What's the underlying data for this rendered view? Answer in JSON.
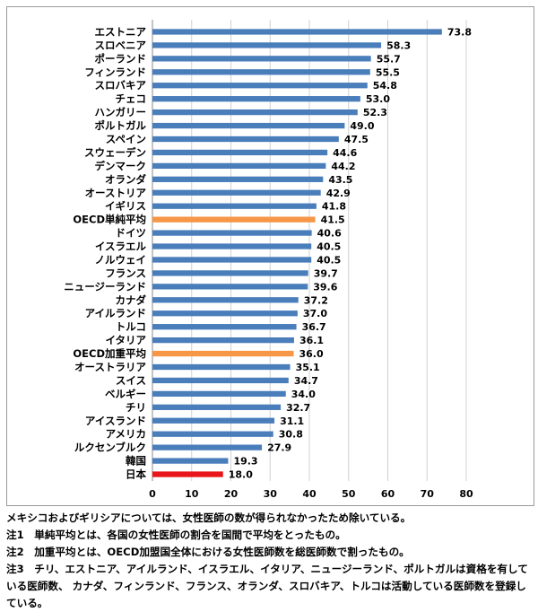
{
  "chart_data": {
    "type": "bar",
    "orientation": "horizontal",
    "categories": [
      "エストニア",
      "スロベニア",
      "ポーランド",
      "フィンランド",
      "スロバキア",
      "チェコ",
      "ハンガリー",
      "ポルトガル",
      "スペイン",
      "スウェーデン",
      "デンマーク",
      "オランダ",
      "オーストリア",
      "イギリス",
      "OECD単純平均",
      "ドイツ",
      "イスラエル",
      "ノルウェイ",
      "フランス",
      "ニュージーランド",
      "カナダ",
      "アイルランド",
      "トルコ",
      "イタリア",
      "OECD加重平均",
      "オーストラリア",
      "スイス",
      "ベルギー",
      "チリ",
      "アイスランド",
      "アメリカ",
      "ルクセンブルク",
      "韓国",
      "日本"
    ],
    "values": [
      73.8,
      58.3,
      55.7,
      55.5,
      54.8,
      53.0,
      52.3,
      49.0,
      47.5,
      44.6,
      44.2,
      43.5,
      42.9,
      41.8,
      41.5,
      40.6,
      40.5,
      40.5,
      39.7,
      39.6,
      37.2,
      37.0,
      36.7,
      36.1,
      36.0,
      35.1,
      34.7,
      34.0,
      32.7,
      31.1,
      30.8,
      27.9,
      19.3,
      18.0
    ],
    "value_labels": [
      "73.8",
      "58.3",
      "55.7",
      "55.5",
      "54.8",
      "53.0",
      "52.3",
      "49.0",
      "47.5",
      "44.6",
      "44.2",
      "43.5",
      "42.9",
      "41.8",
      "41.5",
      "40.6",
      "40.5",
      "40.5",
      "39.7",
      "39.6",
      "37.2",
      "37.0",
      "36.7",
      "36.1",
      "36.0",
      "35.1",
      "34.7",
      "34.0",
      "32.7",
      "31.1",
      "30.8",
      "27.9",
      "19.3",
      "18.0"
    ],
    "xlim": [
      0,
      80
    ],
    "x_ticks": [
      "0",
      "10",
      "20",
      "30",
      "40",
      "50",
      "60",
      "70",
      "80"
    ],
    "grid": true,
    "colors": {
      "default": "#4a7ebb",
      "average": "#f79646",
      "japan": "#e8161b",
      "grid": "#d0d0d0",
      "axis": "#888888"
    },
    "highlight": {
      "OECD単純平均": "average",
      "OECD加重平均": "average",
      "日本": "japan"
    }
  },
  "notes": {
    "line1": "メキシコおよびギリシアについては、女性医師の数が得られなかったため除いている。",
    "line2": "注1　単純平均とは、各国の女性医師の割合を国間で平均をとったもの。",
    "line3": "注2　加重平均とは、OECD加盟国全体における女性医師数を総医師数で割ったもの。",
    "line4": "注3　チリ、エストニア、アイルランド、イスラエル、イタリア、ニュージーランド、ポルトガルは資格を有している医師数、 カナダ、フィンランド、フランス、オランダ、スロバキア、トルコは活動している医師数を登録している。"
  }
}
